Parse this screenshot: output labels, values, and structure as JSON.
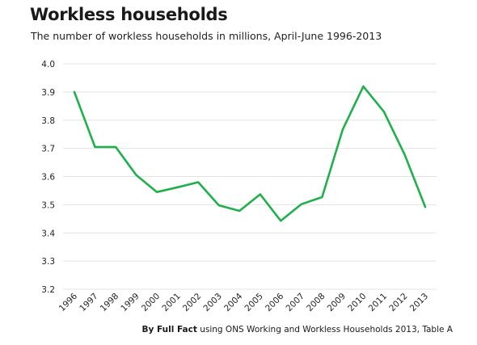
{
  "chart_data": {
    "type": "line",
    "title": "Workless households",
    "subtitle": "The number of workless households in millions, April-June 1996-2013",
    "x": [
      "1996",
      "1997",
      "1998",
      "1999",
      "2000",
      "2001",
      "2002",
      "2003",
      "2004",
      "2005",
      "2006",
      "2007",
      "2008",
      "2009",
      "2010",
      "2011",
      "2012",
      "2013"
    ],
    "series": [
      {
        "values": [
          3.9,
          3.705,
          3.705,
          3.605,
          3.545,
          3.562,
          3.58,
          3.498,
          3.478,
          3.537,
          3.443,
          3.502,
          3.527,
          3.767,
          3.92,
          3.83,
          3.678,
          3.492
        ]
      }
    ],
    "ylim": [
      3.2,
      4.0
    ],
    "yticks": [
      "3.2",
      "3.3",
      "3.4",
      "3.5",
      "3.6",
      "3.7",
      "3.8",
      "3.9",
      "4.0"
    ],
    "xlabel": "",
    "ylabel": "",
    "grid": "horizontal",
    "colors": {
      "line": "#20b04b",
      "grid": "#e3e3e3"
    }
  },
  "source": {
    "strong": "By Full Fact",
    "rest": " using ONS Working and Workless Households 2013, Table A"
  }
}
